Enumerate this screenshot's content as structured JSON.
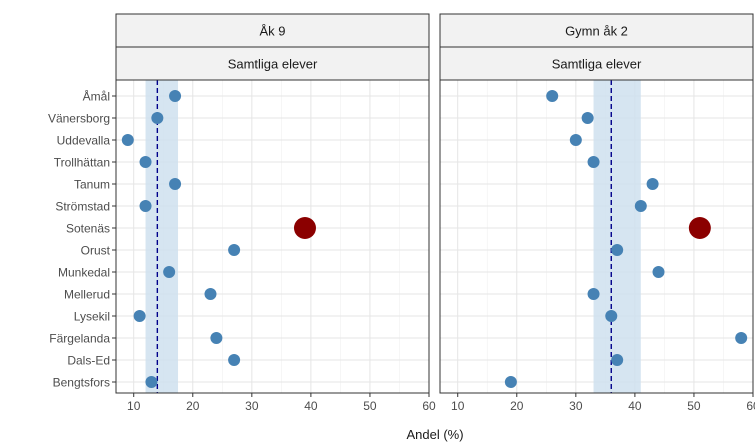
{
  "chart_data": {
    "type": "scatter",
    "xlabel": "Andel (%)",
    "ylabel": "",
    "xlim": [
      7,
      60
    ],
    "x_ticks": [
      10,
      20,
      30,
      40,
      50,
      60
    ],
    "grid": true,
    "categories": [
      "Åmål",
      "Vänersborg",
      "Uddevalla",
      "Trollhättan",
      "Tanum",
      "Strömstad",
      "Sotenäs",
      "Orust",
      "Munkedal",
      "Mellerud",
      "Lysekil",
      "Färgelanda",
      "Dals-Ed",
      "Bengtsfors"
    ],
    "highlight": "Sotenäs",
    "colors": {
      "point": "#4682b4",
      "highlight": "#8b0000",
      "band": "#cfe0ef",
      "reference_line": "#00008b",
      "strip_fill": "#f2f2f2"
    },
    "panels": [
      {
        "title": "Åk 9",
        "subtitle": "Samtliga elever",
        "values": [
          17,
          14,
          9,
          12,
          17,
          12,
          39,
          27,
          16,
          23,
          11,
          24,
          27,
          13
        ],
        "reference": 14,
        "band": [
          12,
          17.5
        ]
      },
      {
        "title": "Gymn åk 2",
        "subtitle": "Samtliga elever",
        "values": [
          26,
          32,
          30,
          33,
          43,
          41,
          51,
          37,
          44,
          33,
          36,
          58,
          37,
          19
        ],
        "reference": 36,
        "band": [
          33,
          41
        ]
      }
    ]
  }
}
